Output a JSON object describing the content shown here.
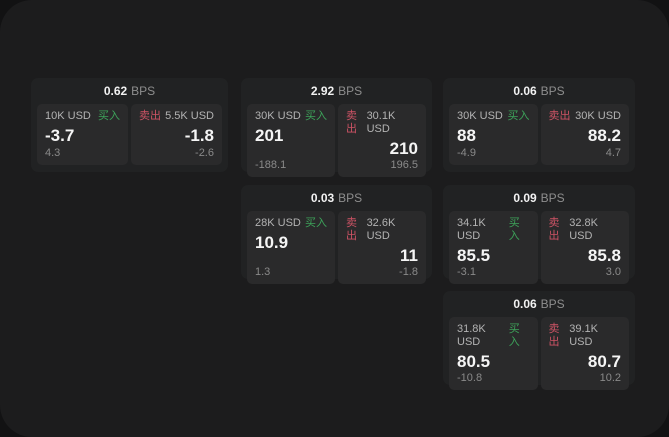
{
  "labels": {
    "buy": "买入",
    "sell": "卖出",
    "bps": "BPS"
  },
  "colors": {
    "buy_green": "#3da35a",
    "sell_red": "#cd5365",
    "window_bg": "#1c1c1d",
    "card_bg": "#212223",
    "panel_bg": "#2a2a2b"
  },
  "cards": [
    {
      "bps": "0.62",
      "buy": {
        "notional": "10K USD",
        "price": "-3.7",
        "delta": "4.3"
      },
      "sell": {
        "notional": "5.5K USD",
        "price": "-1.8",
        "delta": "-2.6"
      }
    },
    {
      "bps": "2.92",
      "buy": {
        "notional": "30K USD",
        "price": "201",
        "delta": "-188.1"
      },
      "sell": {
        "notional": "30.1K USD",
        "price": "210",
        "delta": "196.5"
      }
    },
    {
      "bps": "0.06",
      "buy": {
        "notional": "30K USD",
        "price": "88",
        "delta": "-4.9"
      },
      "sell": {
        "notional": "30K USD",
        "price": "88.2",
        "delta": "4.7"
      }
    },
    {
      "bps": "0.03",
      "buy": {
        "notional": "28K USD",
        "price": "10.9",
        "delta": "1.3"
      },
      "sell": {
        "notional": "32.6K USD",
        "price": "11",
        "delta": "-1.8"
      }
    },
    {
      "bps": "0.09",
      "buy": {
        "notional": "34.1K USD",
        "price": "85.5",
        "delta": "-3.1"
      },
      "sell": {
        "notional": "32.8K USD",
        "price": "85.8",
        "delta": "3.0"
      }
    },
    {
      "bps": "0.06",
      "buy": {
        "notional": "31.8K USD",
        "price": "80.5",
        "delta": "-10.8"
      },
      "sell": {
        "notional": "39.1K USD",
        "price": "80.7",
        "delta": "10.2"
      }
    }
  ]
}
